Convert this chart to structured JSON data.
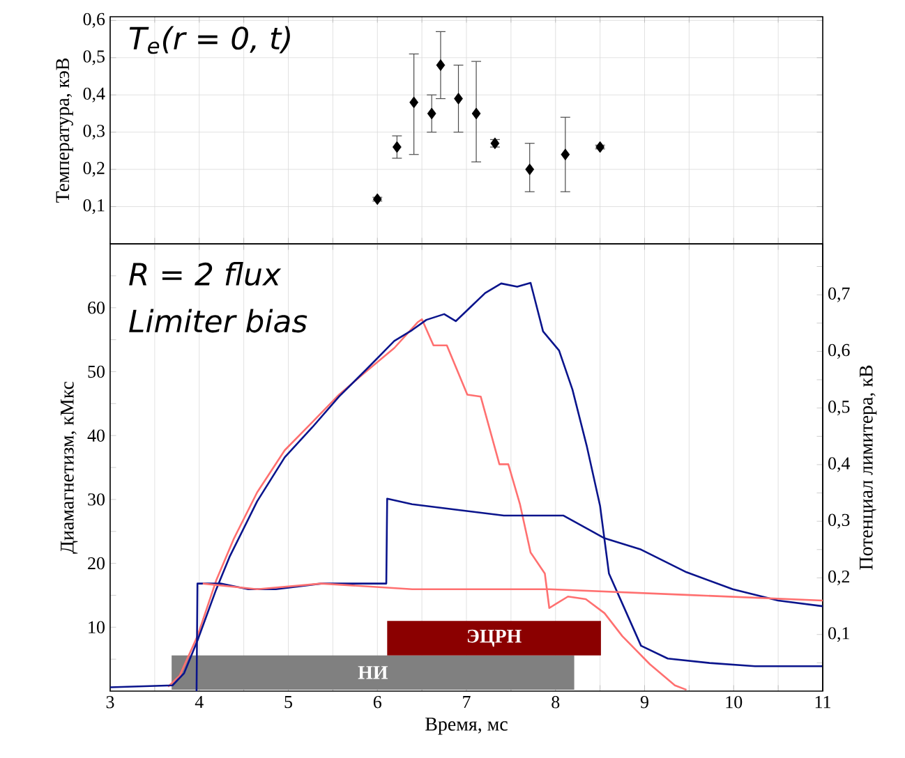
{
  "chart_data": [
    {
      "type": "scatter",
      "ylabel": "Температура, кэВ",
      "annotations": [
        "T$_{e}$(r = 0, t)"
      ],
      "color": "#000000",
      "marker": "diamond",
      "x": [
        6.0,
        6.22,
        6.41,
        6.61,
        6.71,
        6.91,
        7.11,
        7.32,
        7.71,
        8.11,
        8.5
      ],
      "values": [
        0.12,
        0.26,
        0.38,
        0.35,
        0.48,
        0.39,
        0.35,
        0.27,
        0.2,
        0.24,
        0.26
      ],
      "errors": [
        0.005,
        [
          0.23,
          0.29
        ],
        [
          0.24,
          0.51
        ],
        [
          0.3,
          0.4
        ],
        [
          0.39,
          0.57
        ],
        [
          0.3,
          0.48
        ],
        [
          0.22,
          0.49
        ],
        [
          0.26,
          0.28
        ],
        [
          0.14,
          0.27
        ],
        [
          0.14,
          0.34
        ],
        0.005
      ],
      "xlim": [
        3,
        11
      ],
      "xticks": [
        3,
        3.5,
        4,
        4.5,
        5,
        5.5,
        6,
        6.5,
        7,
        7.5,
        8,
        8.5,
        9,
        9.5,
        10,
        10.5,
        11
      ],
      "ylim": [
        0,
        0.61
      ],
      "yticks": [
        {
          "value": 0.1,
          "label": "0,1"
        },
        {
          "value": 0.2,
          "label": "0,2"
        },
        {
          "value": 0.3,
          "label": "0,3"
        },
        {
          "value": 0.4,
          "label": "0,4"
        },
        {
          "value": 0.5,
          "label": "0,5"
        },
        {
          "value": 0.6,
          "label": "0,6"
        }
      ],
      "tick_labels": "y",
      "grid": true
    },
    {
      "type": "line",
      "xlabel": "Время, мс",
      "ylabel": "Диамагнетизм, кМкс",
      "y2label": "Потенциал лимитера, кВ",
      "annotations": [
        "R = 2 flux",
        "Limiter bias"
      ],
      "series": [
        {
          "color": "#ff7070",
          "x": [
            3.65,
            3.78,
            3.98,
            4.19,
            4.39,
            4.65,
            4.96,
            5.27,
            5.57,
            5.88,
            6.19,
            6.45,
            6.5,
            6.63,
            6.78,
            7.01,
            7.16,
            7.37,
            7.47,
            7.6,
            7.72,
            7.88,
            7.93,
            8.01,
            8.14,
            8.34,
            8.55,
            8.75,
            9.06,
            9.34,
            9.47
          ],
          "values": [
            0.7,
            2.4,
            8.6,
            17.3,
            23.9,
            31.1,
            37.7,
            42.1,
            46.4,
            50.1,
            53.7,
            57.7,
            58.2,
            54.1,
            54.1,
            46.4,
            46.1,
            35.5,
            35.5,
            29.3,
            21.7,
            18.4,
            13,
            13.7,
            14.8,
            14.4,
            12.2,
            8.6,
            4.2,
            0.9,
            0.2
          ]
        },
        {
          "color": "#0a148c",
          "x": [
            3,
            3.7,
            3.83,
            3.98,
            4.19,
            4.34,
            4.65,
            4.96,
            5.27,
            5.57,
            5.88,
            6.19,
            6.39,
            6.55,
            6.75,
            6.88,
            7.06,
            7.21,
            7.39,
            7.57,
            7.72,
            7.86,
            8.04,
            8.19,
            8.35,
            8.5,
            8.6,
            8.75,
            8.96,
            9.26,
            9.73,
            10.24,
            11
          ],
          "values": [
            0.6,
            0.9,
            2.8,
            7.9,
            15.9,
            21,
            29.7,
            36.6,
            41.3,
            46.1,
            50.4,
            54.8,
            56.5,
            58.1,
            59,
            57.9,
            60.3,
            62.3,
            63.8,
            63.3,
            63.9,
            56.3,
            53.3,
            47.2,
            38.4,
            29,
            18.4,
            13.7,
            7.1,
            5.1,
            4.4,
            3.9,
            3.9
          ]
        },
        {
          "color": "#0a148c",
          "axis": "y2",
          "x": [
            3.97,
            3.98,
            4.24,
            4.55,
            4.86,
            5.37,
            6.1,
            6.11,
            6.39,
            6.91,
            7.42,
            8.09,
            8.55,
            8.96,
            9.47,
            9.99,
            10.5,
            11
          ],
          "values": [
            0,
            0.19,
            0.19,
            0.18,
            0.18,
            0.19,
            0.19,
            0.34,
            0.33,
            0.32,
            0.31,
            0.31,
            0.27,
            0.25,
            0.21,
            0.18,
            0.16,
            0.15
          ]
        },
        {
          "color": "#ff7070",
          "axis": "y2",
          "x": [
            4.04,
            4.65,
            5.37,
            6.39,
            7.93,
            9.47,
            11
          ],
          "values": [
            0.19,
            0.18,
            0.19,
            0.18,
            0.18,
            0.17,
            0.16
          ]
        }
      ],
      "bands": [
        {
          "axis": "x",
          "from": 3.69,
          "to": 8.21,
          "label": "НИ",
          "color": "#808080"
        },
        {
          "axis": "x",
          "from": 6.11,
          "to": 8.51,
          "label": "ЭЦРН",
          "color": "#8b0000"
        }
      ],
      "xlim": [
        3,
        11
      ],
      "xticks": [
        3,
        {
          "value": 3.5,
          "label": null
        },
        4,
        {
          "value": 4.5,
          "label": null
        },
        5,
        {
          "value": 5.5,
          "label": null
        },
        6,
        {
          "value": 6.5,
          "label": null
        },
        7,
        {
          "value": 7.5,
          "label": null
        },
        8,
        {
          "value": 8.5,
          "label": null
        },
        9,
        {
          "value": 9.5,
          "label": null
        },
        10,
        {
          "value": 10.5,
          "label": null
        },
        11
      ],
      "ylim": [
        0,
        70
      ],
      "yticks": [
        {
          "value": 5,
          "label": null
        },
        10,
        {
          "value": 15,
          "label": null
        },
        20,
        {
          "value": 25,
          "label": null
        },
        30,
        {
          "value": 35,
          "label": null
        },
        40,
        {
          "value": 45,
          "label": null
        },
        50,
        {
          "value": 55,
          "label": null
        },
        60,
        {
          "value": 65,
          "label": null
        }
      ],
      "y2lim": [
        0,
        0.79
      ],
      "y2ticks": [
        {
          "value": 0.05,
          "label": null
        },
        {
          "value": 0.1,
          "label": "0,1"
        },
        {
          "value": 0.15,
          "label": null
        },
        {
          "value": 0.2,
          "label": "0,2"
        },
        {
          "value": 0.25,
          "label": null
        },
        {
          "value": 0.3,
          "label": "0,3"
        },
        {
          "value": 0.35,
          "label": null
        },
        {
          "value": 0.4,
          "label": "0,4"
        },
        {
          "value": 0.45,
          "label": null
        },
        {
          "value": 0.5,
          "label": "0,5"
        },
        {
          "value": 0.55,
          "label": null
        },
        {
          "value": 0.6,
          "label": "0,6"
        },
        {
          "value": 0.65,
          "label": null
        },
        {
          "value": 0.7,
          "label": "0,7"
        },
        {
          "value": 0.75,
          "label": null
        }
      ],
      "grid": "x"
    }
  ]
}
